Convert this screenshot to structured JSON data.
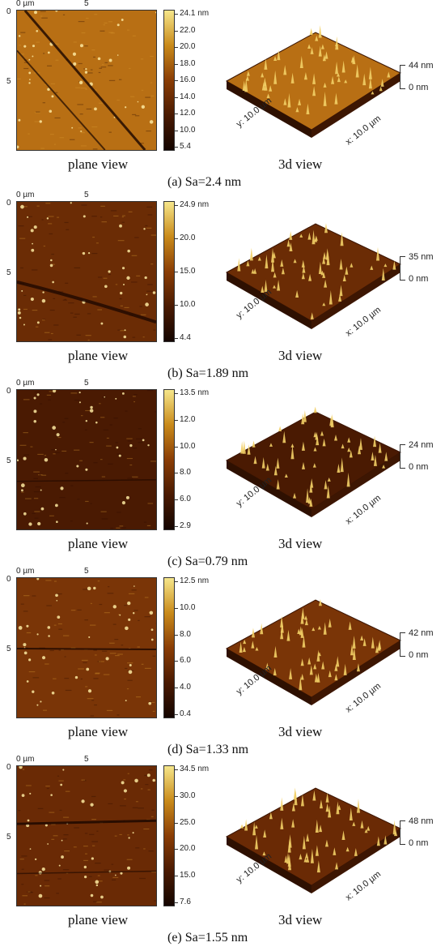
{
  "figure": {
    "axis_labels": {
      "x0": "0 µm",
      "x5": "5",
      "y0": "0",
      "y5": "5"
    },
    "plane_view_label": "plane view",
    "view3d_label": "3d view",
    "y_axis_3d": "y: 10.0 µm",
    "x_axis_3d": "x: 10.0 µm",
    "z_bottom": "0 nm",
    "colormap": [
      "#140500",
      "#4a1a02",
      "#8a3d05",
      "#c98a1a",
      "#f6e68a"
    ],
    "panels": [
      {
        "caption": "(a) Sa=2.4 nm",
        "z_top": "44 nm",
        "colorbar": [
          "24.1 nm",
          "22.0",
          "20.0",
          "18.0",
          "16.0",
          "14.0",
          "12.0",
          "10.0",
          "5.4"
        ],
        "base_color": "#b86f14"
      },
      {
        "caption": "(b) Sa=1.89 nm",
        "z_top": "35 nm",
        "colorbar": [
          "24.9 nm",
          "20.0",
          "15.0",
          "10.0",
          "4.4"
        ],
        "base_color": "#6b2c05"
      },
      {
        "caption": "(c) Sa=0.79 nm",
        "z_top": "24 nm",
        "colorbar": [
          "13.5 nm",
          "12.0",
          "10.0",
          "8.0",
          "6.0",
          "2.9"
        ],
        "base_color": "#4a1a02"
      },
      {
        "caption": "(d) Sa=1.33 nm",
        "z_top": "42 nm",
        "colorbar": [
          "12.5 nm",
          "10.0",
          "8.0",
          "6.0",
          "4.0",
          "0.4"
        ],
        "base_color": "#7a3507"
      },
      {
        "caption": "(e) Sa=1.55 nm",
        "z_top": "48 nm",
        "colorbar": [
          "34.5 nm",
          "30.0",
          "25.0",
          "20.0",
          "15.0",
          "7.6"
        ],
        "base_color": "#6a2a05"
      }
    ]
  }
}
